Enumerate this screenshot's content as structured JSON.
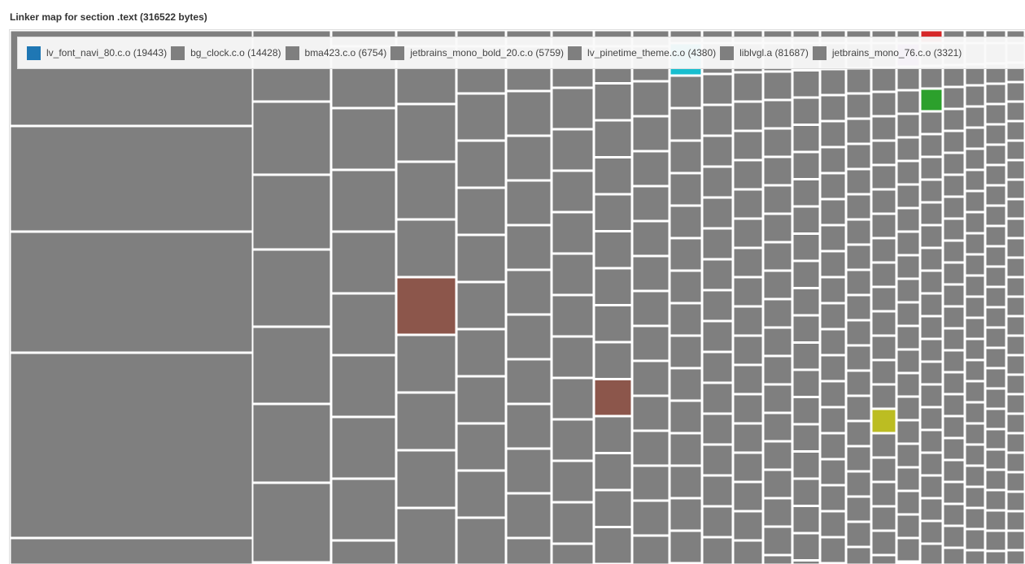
{
  "chart_data": {
    "type": "treemap",
    "title": "Linker map for section .text (316522 bytes)",
    "legend_placement": "top",
    "legend": [
      {
        "label": "lv_font_navi_80.c.o (19443)",
        "color": "#1f77b4"
      },
      {
        "label": "bg_clock.c.o (14428)",
        "color": "#7f7f7f"
      },
      {
        "label": "bma423.c.o (6754)",
        "color": "#7f7f7f"
      },
      {
        "label": "jetbrains_mono_bold_20.c.o (5759)",
        "color": "#7f7f7f"
      },
      {
        "label": "lv_pinetime_theme.c.o (4380)",
        "color": "#7f7f7f"
      },
      {
        "label": "liblvgl.a (81687)",
        "color": "#7f7f7f"
      },
      {
        "label": "jetbrains_mono_76.c.o (3321)",
        "color": "#7f7f7f"
      }
    ],
    "default_color": "#7f7f7f",
    "highlight_colors": [
      "#8c564b",
      "#17becf",
      "#9467bd",
      "#d62728",
      "#2ca02c",
      "#bcbd22"
    ]
  }
}
